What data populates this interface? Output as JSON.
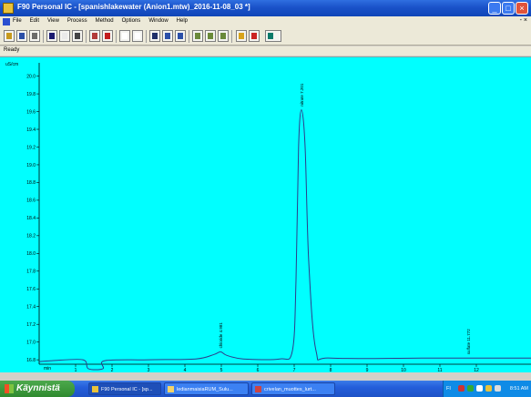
{
  "window": {
    "title": "F90 Personal IC - [spanishlakewater (Anion1.mtw)_2016-11-08_03 *]"
  },
  "menu": {
    "items": [
      "File",
      "Edit",
      "View",
      "Process",
      "Method",
      "Options",
      "Window",
      "Help"
    ],
    "mdi_controls": "- &#215;"
  },
  "status": {
    "text": "Ready"
  },
  "chart_data": {
    "type": "line",
    "y_unit_label": "uS/cm",
    "x_unit_label": "min",
    "x_ticks": [
      "1",
      "2",
      "3",
      "4",
      "5",
      "6",
      "7",
      "8",
      "9",
      "10",
      "11",
      "12"
    ],
    "y_ticks": [
      "16.8",
      "17.0",
      "17.2",
      "17.4",
      "17.6",
      "17.8",
      "18.0",
      "18.2",
      "18.4",
      "18.6",
      "18.8",
      "19.0",
      "19.2",
      "19.4",
      "19.6",
      "19.8",
      "20.0"
    ],
    "xlim": [
      0,
      13.5
    ],
    "ylim": [
      16.75,
      20.15
    ],
    "grid": false,
    "peaks": [
      {
        "label": "chloride 4.981",
        "rt": 4.98,
        "height": 16.89
      },
      {
        "label": "nitrate 7.201",
        "rt": 7.2,
        "height": 19.62
      },
      {
        "label": "sulfate 11.772",
        "rt": 11.77,
        "height": 16.82
      }
    ],
    "baseline": [
      [
        0.0,
        16.78
      ],
      [
        0.35,
        16.79
      ],
      [
        1.2,
        16.8
      ],
      [
        1.35,
        16.7
      ],
      [
        1.75,
        16.7
      ],
      [
        1.8,
        16.79
      ],
      [
        3.0,
        16.8
      ],
      [
        4.3,
        16.81
      ],
      [
        4.8,
        16.86
      ],
      [
        4.98,
        16.89
      ],
      [
        5.15,
        16.85
      ],
      [
        5.6,
        16.81
      ],
      [
        6.6,
        16.81
      ],
      [
        6.95,
        16.9
      ],
      [
        7.05,
        17.7
      ],
      [
        7.12,
        19.2
      ],
      [
        7.2,
        19.62
      ],
      [
        7.3,
        19.2
      ],
      [
        7.4,
        17.9
      ],
      [
        7.6,
        16.9
      ],
      [
        8.0,
        16.82
      ],
      [
        10.5,
        16.82
      ],
      [
        11.77,
        16.82
      ],
      [
        13.5,
        16.82
      ]
    ]
  },
  "taskbar": {
    "start_label": "Käynnistä",
    "tasks": [
      {
        "label": "F90 Personal IC - [sp...",
        "active": true
      },
      {
        "label": "ledianmaisiaRUM_Sulu...",
        "active": false
      },
      {
        "label": "crivelan_muottes_lurt...",
        "active": false
      }
    ],
    "tray": {
      "lang": "FI",
      "clock": "8:51 AM"
    }
  },
  "colors": {
    "chart_bg": "#00ffff",
    "trace": "#2d3c8a",
    "title_bar": "#245edb"
  }
}
